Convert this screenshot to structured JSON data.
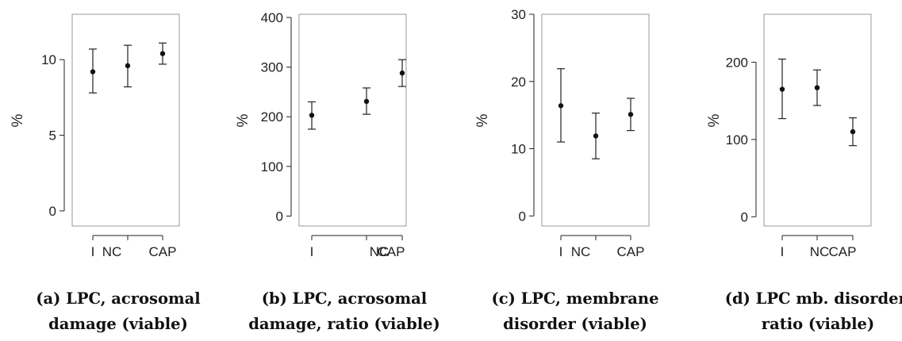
{
  "chart_data": [
    {
      "type": "errorbar",
      "caption": [
        "(a) LPC, acrosomal",
        "damage (viable)"
      ],
      "ylabel": "%",
      "categories": [
        "I",
        "NC",
        "CAP"
      ],
      "ylim": [
        -1,
        13
      ],
      "yticks": [
        0,
        5,
        10
      ],
      "points": [
        {
          "x": "I",
          "y": 9.2,
          "lo": 7.8,
          "hi": 10.7
        },
        {
          "x": "NC",
          "y": 9.6,
          "lo": 8.2,
          "hi": 10.95
        },
        {
          "x": "CAP",
          "y": 10.4,
          "lo": 9.7,
          "hi": 11.1
        }
      ]
    },
    {
      "type": "errorbar",
      "caption": [
        "(b) LPC, acrosomal",
        "damage, ratio (viable)"
      ],
      "ylabel": "%",
      "categories": [
        "I",
        "NC",
        "CAP"
      ],
      "ylim": [
        -20,
        400
      ],
      "yticks": [
        0,
        100,
        200,
        300,
        400
      ],
      "points": [
        {
          "x": "I",
          "y": 203,
          "lo": 175,
          "hi": 230
        },
        {
          "x": "NC",
          "y": 231,
          "lo": 205,
          "hi": 258
        },
        {
          "x": "CAP",
          "y": 288,
          "lo": 261,
          "hi": 315
        }
      ]
    },
    {
      "type": "errorbar",
      "caption": [
        "(c) LPC, membrane",
        "disorder (viable)"
      ],
      "ylabel": "%",
      "categories": [
        "I",
        "NC",
        "CAP"
      ],
      "ylim": [
        -1.5,
        30
      ],
      "yticks": [
        0,
        10,
        20,
        30
      ],
      "points": [
        {
          "x": "I",
          "y": 16.4,
          "lo": 11.0,
          "hi": 21.9
        },
        {
          "x": "NC",
          "y": 11.9,
          "lo": 8.5,
          "hi": 15.3
        },
        {
          "x": "CAP",
          "y": 15.1,
          "lo": 12.7,
          "hi": 17.5
        }
      ]
    },
    {
      "type": "errorbar",
      "caption": [
        "(d) LPC mb. disorder,",
        "ratio (viable)"
      ],
      "ylabel": "%",
      "categories": [
        "I",
        "NC",
        "CAP"
      ],
      "ylim": [
        -12,
        262
      ],
      "yticks": [
        0,
        100,
        200
      ],
      "points": [
        {
          "x": "I",
          "y": 165,
          "lo": 127,
          "hi": 204
        },
        {
          "x": "NC",
          "y": 167,
          "lo": 144,
          "hi": 190
        },
        {
          "x": "CAP",
          "y": 110,
          "lo": 92,
          "hi": 128
        }
      ]
    }
  ]
}
